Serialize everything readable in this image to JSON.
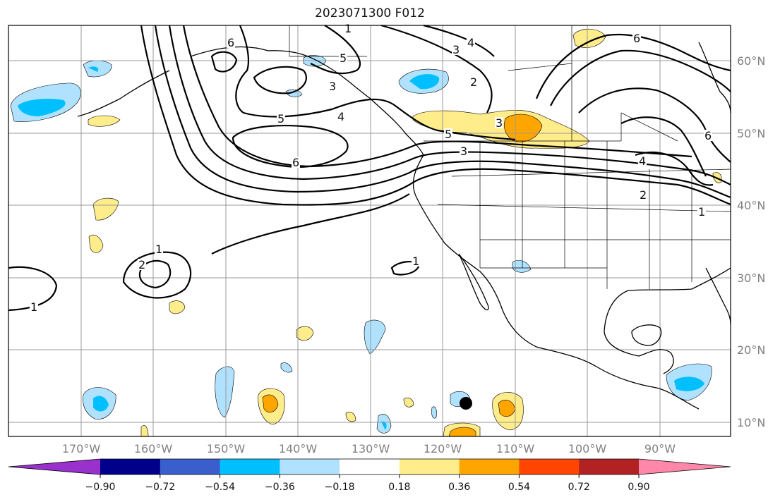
{
  "title": "2023071300 F012",
  "map": {
    "lat_labels": [
      {
        "text": "60°N",
        "value": 60
      },
      {
        "text": "50°N",
        "value": 50
      },
      {
        "text": "40°N",
        "value": 40
      },
      {
        "text": "30°N",
        "value": 30
      },
      {
        "text": "20°N",
        "value": 20
      },
      {
        "text": "10°N",
        "value": 10
      }
    ],
    "lon_labels": [
      {
        "text": "170°W",
        "value": -170
      },
      {
        "text": "160°W",
        "value": -160
      },
      {
        "text": "150°W",
        "value": -150
      },
      {
        "text": "140°W",
        "value": -140
      },
      {
        "text": "130°W",
        "value": -130
      },
      {
        "text": "120°W",
        "value": -120
      },
      {
        "text": "110°W",
        "value": -110
      },
      {
        "text": "100°W",
        "value": -100
      },
      {
        "text": "90°W",
        "value": -90
      }
    ],
    "contour_labels": [
      "1",
      "2",
      "3",
      "4",
      "5",
      "6"
    ],
    "marker_color": "#000000"
  },
  "colorbar": {
    "colors": [
      "#9932cc",
      "#00008b",
      "#3a5fcd",
      "#00bfff",
      "#b0e2ff",
      "#ffffff",
      "#ffec8b",
      "#ffa500",
      "#ff4500",
      "#b22222",
      "#ff88aa"
    ],
    "tick_labels": [
      "−0.90",
      "−0.72",
      "−0.54",
      "−0.36",
      "−0.18",
      "0.18",
      "0.36",
      "0.54",
      "0.72",
      "0.90"
    ]
  }
}
